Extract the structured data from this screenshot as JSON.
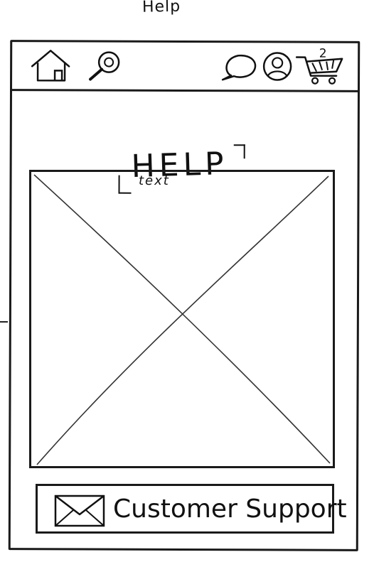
{
  "sheet": {
    "title": "Help"
  },
  "topbar": {
    "icons": [
      "home-icon",
      "search-icon",
      "chat-icon",
      "user-icon",
      "cart-icon"
    ],
    "cart_count": "2"
  },
  "page": {
    "heading": "HELP"
  },
  "image_placeholder": {
    "text": "text"
  },
  "support": {
    "icon": "mail-icon",
    "label": "Customer Support"
  }
}
